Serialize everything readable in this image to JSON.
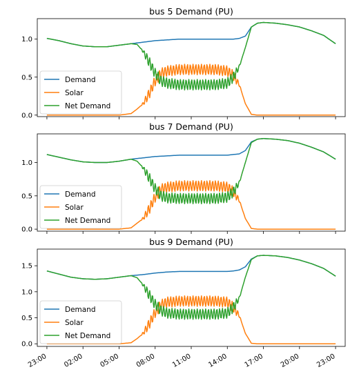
{
  "chart_data": [
    {
      "type": "line",
      "title": "bus 5 Demand (PU)",
      "ylim": [
        -0.02,
        1.27
      ],
      "yticks": [
        "0.0",
        "0.5",
        "1.0"
      ],
      "ytick_values": [
        0.0,
        0.5,
        1.0
      ],
      "legend": {
        "placement": "lower-left",
        "entries": [
          "Demand",
          "Solar",
          "Net Demand"
        ]
      },
      "grid": false,
      "series": [
        {
          "name": "Demand",
          "color": "#1f77b4",
          "x": [
            0,
            1,
            2,
            3,
            4,
            5,
            6,
            7,
            7.5,
            8,
            9,
            10,
            11,
            12,
            13,
            14,
            15,
            15.5,
            16,
            16.5,
            17,
            17.5,
            18,
            19,
            20,
            21,
            22,
            23,
            24
          ],
          "values": [
            1.01,
            0.98,
            0.94,
            0.91,
            0.9,
            0.9,
            0.92,
            0.94,
            0.95,
            0.96,
            0.98,
            0.99,
            1.0,
            1.0,
            1.0,
            1.0,
            1.0,
            1.0,
            1.01,
            1.04,
            1.16,
            1.21,
            1.22,
            1.21,
            1.19,
            1.16,
            1.11,
            1.05,
            0.94
          ]
        },
        {
          "name": "Solar",
          "color": "#ff7f0e",
          "x": [
            0,
            6,
            7,
            7.5,
            8,
            8.5,
            9,
            9.5,
            10,
            11,
            12,
            13,
            14,
            15,
            15.5,
            16,
            16.5,
            17,
            17.5,
            18,
            20,
            22,
            24
          ],
          "values": [
            0,
            0,
            0.02,
            0.08,
            0.15,
            0.28,
            0.45,
            0.55,
            0.58,
            0.6,
            0.6,
            0.6,
            0.6,
            0.58,
            0.52,
            0.4,
            0.15,
            0.01,
            0,
            0,
            0,
            0,
            0
          ]
        },
        {
          "name": "Net Demand",
          "color": "#2ca02c",
          "x": [
            0,
            1,
            2,
            3,
            4,
            5,
            6,
            7,
            7.5,
            8,
            8.5,
            9,
            9.5,
            10,
            11,
            12,
            13,
            14,
            15,
            15.5,
            16,
            16.5,
            17,
            17.5,
            18,
            19,
            20,
            21,
            22,
            23,
            24
          ],
          "values": [
            1.01,
            0.98,
            0.94,
            0.91,
            0.9,
            0.9,
            0.92,
            0.94,
            0.93,
            0.84,
            0.7,
            0.55,
            0.45,
            0.42,
            0.4,
            0.4,
            0.4,
            0.4,
            0.42,
            0.5,
            0.64,
            0.89,
            1.16,
            1.21,
            1.22,
            1.21,
            1.19,
            1.16,
            1.11,
            1.05,
            0.94
          ]
        }
      ]
    },
    {
      "type": "line",
      "title": "bus 7 Demand (PU)",
      "ylim": [
        -0.03,
        1.43
      ],
      "yticks": [
        "0.0",
        "0.5",
        "1.0"
      ],
      "ytick_values": [
        0.0,
        0.5,
        1.0
      ],
      "legend": {
        "placement": "lower-left",
        "entries": [
          "Demand",
          "Solar",
          "Net Demand"
        ]
      },
      "grid": false,
      "series": [
        {
          "name": "Demand",
          "color": "#1f77b4",
          "x": [
            0,
            1,
            2,
            3,
            4,
            5,
            6,
            7,
            7.5,
            8,
            9,
            10,
            11,
            12,
            13,
            14,
            15,
            15.5,
            16,
            16.5,
            17,
            17.5,
            18,
            19,
            20,
            21,
            22,
            23,
            24
          ],
          "values": [
            1.12,
            1.08,
            1.04,
            1.01,
            1.0,
            1.0,
            1.02,
            1.05,
            1.06,
            1.07,
            1.09,
            1.1,
            1.11,
            1.11,
            1.11,
            1.11,
            1.11,
            1.12,
            1.13,
            1.18,
            1.31,
            1.35,
            1.36,
            1.35,
            1.33,
            1.29,
            1.23,
            1.16,
            1.05
          ]
        },
        {
          "name": "Solar",
          "color": "#ff7f0e",
          "x": [
            0,
            6,
            7,
            7.5,
            8,
            8.5,
            9,
            9.5,
            10,
            11,
            12,
            13,
            14,
            15,
            15.5,
            16,
            16.5,
            17,
            17.5,
            18,
            20,
            22,
            24
          ],
          "values": [
            0,
            0,
            0.02,
            0.09,
            0.16,
            0.3,
            0.48,
            0.6,
            0.63,
            0.65,
            0.65,
            0.65,
            0.65,
            0.63,
            0.56,
            0.43,
            0.16,
            0.01,
            0,
            0,
            0,
            0,
            0
          ]
        },
        {
          "name": "Net Demand",
          "color": "#2ca02c",
          "x": [
            0,
            1,
            2,
            3,
            4,
            5,
            6,
            7,
            7.5,
            8,
            8.5,
            9,
            9.5,
            10,
            11,
            12,
            13,
            14,
            15,
            15.5,
            16,
            16.5,
            17,
            17.5,
            18,
            19,
            20,
            21,
            22,
            23,
            24
          ],
          "values": [
            1.12,
            1.08,
            1.04,
            1.01,
            1.0,
            1.0,
            1.02,
            1.05,
            1.02,
            0.92,
            0.77,
            0.61,
            0.5,
            0.47,
            0.46,
            0.46,
            0.46,
            0.46,
            0.48,
            0.56,
            0.7,
            1.0,
            1.3,
            1.35,
            1.36,
            1.35,
            1.33,
            1.29,
            1.23,
            1.16,
            1.05
          ]
        }
      ]
    },
    {
      "type": "line",
      "title": "bus 9 Demand (PU)",
      "ylim": [
        -0.05,
        1.82
      ],
      "yticks": [
        "0.0",
        "0.5",
        "1.0",
        "1.5"
      ],
      "ytick_values": [
        0.0,
        0.5,
        1.0,
        1.5
      ],
      "xlabels": [
        "23:00",
        "02:00",
        "05:00",
        "08:00",
        "11:00",
        "14:00",
        "17:00",
        "20:00",
        "23:00"
      ],
      "legend": {
        "placement": "lower-left",
        "entries": [
          "Demand",
          "Solar",
          "Net Demand"
        ]
      },
      "grid": false,
      "series": [
        {
          "name": "Demand",
          "color": "#1f77b4",
          "x": [
            0,
            1,
            2,
            3,
            4,
            5,
            6,
            7,
            7.5,
            8,
            9,
            10,
            11,
            12,
            13,
            14,
            15,
            15.5,
            16,
            16.5,
            17,
            17.5,
            18,
            19,
            20,
            21,
            22,
            23,
            24
          ],
          "values": [
            1.4,
            1.34,
            1.28,
            1.25,
            1.24,
            1.25,
            1.28,
            1.31,
            1.32,
            1.33,
            1.36,
            1.38,
            1.39,
            1.39,
            1.39,
            1.39,
            1.39,
            1.4,
            1.42,
            1.48,
            1.63,
            1.69,
            1.7,
            1.69,
            1.66,
            1.61,
            1.54,
            1.45,
            1.3
          ]
        },
        {
          "name": "Solar",
          "color": "#ff7f0e",
          "x": [
            0,
            6,
            7,
            7.5,
            8,
            8.5,
            9,
            9.5,
            10,
            11,
            12,
            13,
            14,
            15,
            15.5,
            16,
            16.5,
            17,
            17.5,
            18,
            20,
            22,
            24
          ],
          "values": [
            0,
            0,
            0.02,
            0.1,
            0.2,
            0.38,
            0.6,
            0.75,
            0.8,
            0.82,
            0.82,
            0.82,
            0.82,
            0.8,
            0.7,
            0.54,
            0.2,
            0.01,
            0,
            0,
            0,
            0,
            0
          ]
        },
        {
          "name": "Net Demand",
          "color": "#2ca02c",
          "x": [
            0,
            1,
            2,
            3,
            4,
            5,
            6,
            7,
            7.5,
            8,
            8.5,
            9,
            9.5,
            10,
            11,
            12,
            13,
            14,
            15,
            15.5,
            16,
            16.5,
            17,
            17.5,
            18,
            19,
            20,
            21,
            22,
            23,
            24
          ],
          "values": [
            1.4,
            1.34,
            1.28,
            1.25,
            1.24,
            1.25,
            1.28,
            1.31,
            1.27,
            1.13,
            0.94,
            0.76,
            0.64,
            0.59,
            0.57,
            0.57,
            0.57,
            0.57,
            0.59,
            0.7,
            0.88,
            1.28,
            1.62,
            1.69,
            1.7,
            1.69,
            1.66,
            1.61,
            1.54,
            1.45,
            1.3
          ]
        }
      ]
    }
  ]
}
